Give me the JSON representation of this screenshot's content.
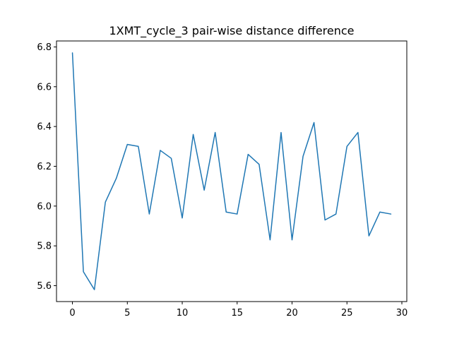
{
  "chart_data": {
    "type": "line",
    "title": "1XMT_cycle_3 pair-wise distance difference",
    "xlabel": "",
    "ylabel": "",
    "xlim": [
      -1.45,
      30.45
    ],
    "ylim": [
      5.52,
      6.83
    ],
    "x_ticks": [
      0,
      5,
      10,
      15,
      20,
      25,
      30
    ],
    "x_tick_labels": [
      "0",
      "5",
      "10",
      "15",
      "20",
      "25",
      "30"
    ],
    "y_ticks": [
      5.6,
      5.8,
      6.0,
      6.2,
      6.4,
      6.6,
      6.8
    ],
    "y_tick_labels": [
      "5.6",
      "5.8",
      "6.0",
      "6.2",
      "6.4",
      "6.6",
      "6.8"
    ],
    "grid": false,
    "series": [
      {
        "color": "#1f77b4",
        "x": [
          0,
          1,
          2,
          3,
          4,
          5,
          6,
          7,
          8,
          9,
          10,
          11,
          12,
          13,
          14,
          15,
          16,
          17,
          18,
          19,
          20,
          21,
          22,
          23,
          24,
          25,
          26,
          27,
          28,
          29
        ],
        "y": [
          6.77,
          5.67,
          5.58,
          6.02,
          6.14,
          6.31,
          6.3,
          5.96,
          6.28,
          6.24,
          5.94,
          6.36,
          6.08,
          6.37,
          5.97,
          5.96,
          6.26,
          6.21,
          5.83,
          6.37,
          5.83,
          6.25,
          6.42,
          5.93,
          5.96,
          6.3,
          6.37,
          5.85,
          5.97,
          5.96
        ]
      }
    ]
  }
}
